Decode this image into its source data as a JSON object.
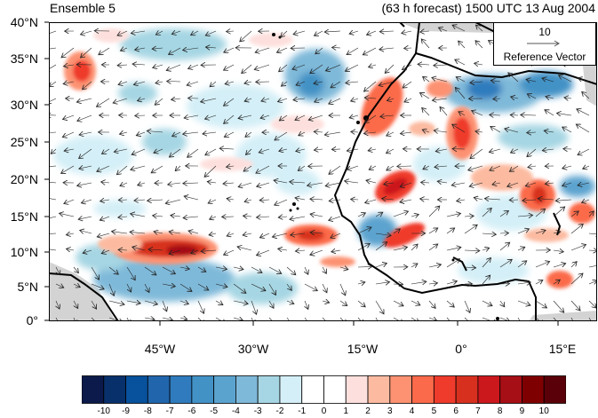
{
  "titles": {
    "left": "Ensemble 5",
    "right": "(63 h forecast) 1500 UTC 13 Aug 2004"
  },
  "axes": {
    "lat_labels": [
      "40°N",
      "35°N",
      "30°N",
      "25°N",
      "20°N",
      "15°N",
      "10°N",
      "5°N",
      "0°"
    ],
    "lon_labels": [
      "45°W",
      "30°W",
      "15°W",
      "0°",
      "15°E"
    ]
  },
  "reference_vector": {
    "value": "10",
    "label": "Reference Vector"
  },
  "colorbar": {
    "labels": [
      "-10",
      "-9",
      "-8",
      "-7",
      "-6",
      "-5",
      "-4",
      "-3",
      "-2",
      "-1",
      "0",
      "1",
      "2",
      "3",
      "4",
      "5",
      "6",
      "7",
      "8",
      "9",
      "10"
    ],
    "colors": [
      "#0b1a4a",
      "#08306b",
      "#08519c",
      "#2166ac",
      "#2f7bbd",
      "#4292c6",
      "#5ba3cf",
      "#7fb9d9",
      "#a6d6e3",
      "#d4eff7",
      "#ffffff",
      "#ffffff",
      "#fde0dd",
      "#fcbba1",
      "#fc9272",
      "#fb6a4a",
      "#ef3b2c",
      "#d7301f",
      "#cb181d",
      "#a50f15",
      "#7f0000",
      "#5a0008"
    ]
  },
  "map_colors": {
    "ocean": "#ffffff",
    "land": "#ffffff",
    "missing": "#d3d3d3",
    "coast": "#000000",
    "light_blue": "#d4eff7",
    "mid_blue": "#7fb9d9",
    "dark_blue": "#2f7bbd",
    "light_red": "#fde0dd",
    "mid_red": "#fb6a4a",
    "dark_red": "#cb181d"
  }
}
